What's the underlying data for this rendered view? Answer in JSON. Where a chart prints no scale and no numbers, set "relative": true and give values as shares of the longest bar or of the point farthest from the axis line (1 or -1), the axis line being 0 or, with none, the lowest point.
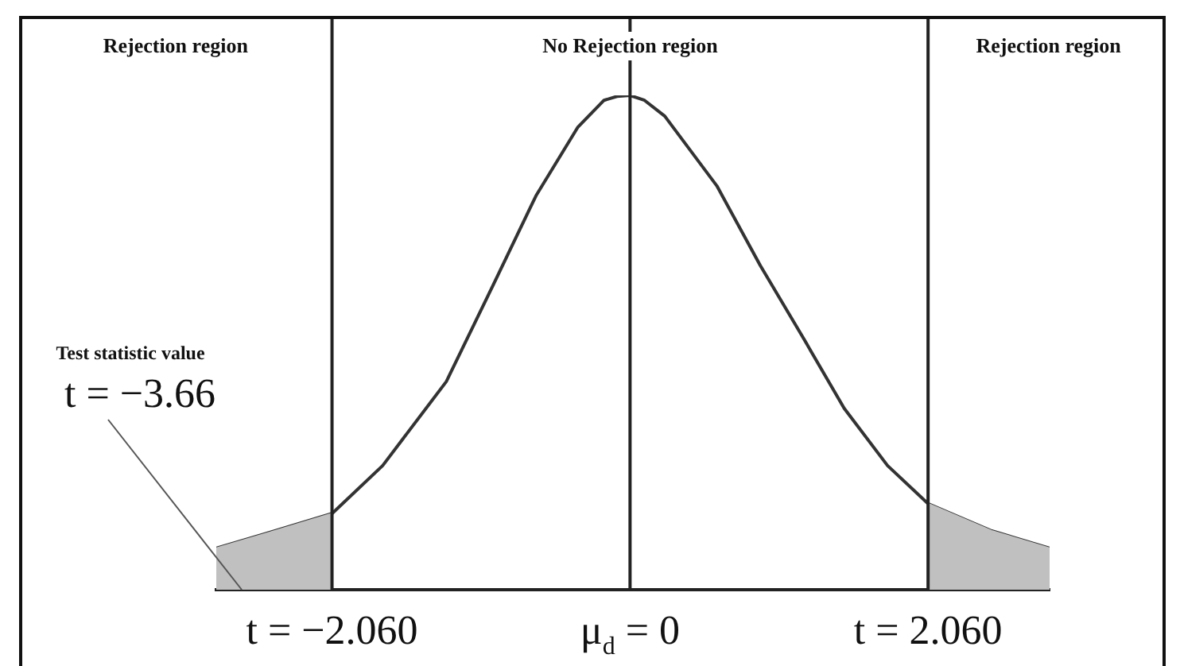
{
  "chart_data": {
    "type": "line",
    "relative": true,
    "xlim": [
      -2.86,
      2.9
    ],
    "tick_labels": "x",
    "grid": "x",
    "legend": false,
    "marker": "none",
    "line_style": "solid",
    "xticks": [
      {
        "value": -2.06,
        "label": "t = −2.060"
      },
      {
        "value": 0,
        "label": "μ$_{d}$ = 0"
      },
      {
        "value": 2.06,
        "label": "t = 2.060"
      }
    ],
    "series": [
      {
        "type": "area",
        "color": "#c0c0c0",
        "x": [
          -2.86,
          -2.5,
          -2.06
        ],
        "values": [
          0.084,
          0.115,
          0.154
        ]
      },
      {
        "type": "area",
        "color": "#c0c0c0",
        "x": [
          2.06,
          2.5,
          2.9
        ],
        "values": [
          0.174,
          0.119,
          0.084
        ]
      },
      {
        "type": "line",
        "color": "#333333",
        "x": [
          -2.86,
          -2.5,
          -2.06,
          -1.71,
          -1.27,
          -0.95,
          -0.65,
          -0.36,
          -0.18,
          -0.09,
          0,
          0.1,
          0.24,
          0.6,
          0.9,
          1.2,
          1.48,
          1.78,
          2.06,
          2.5,
          2.9
        ],
        "values": [
          0.084,
          0.115,
          0.154,
          0.251,
          0.421,
          0.614,
          0.797,
          0.936,
          0.99,
          0.998,
          1,
          0.99,
          0.958,
          0.817,
          0.656,
          0.508,
          0.367,
          0.251,
          0.174,
          0.119,
          0.084
        ]
      }
    ],
    "annotations": [
      "Rejection region",
      "No Rejection region",
      "Rejection region",
      "Test statistic value",
      "t = −3.66"
    ]
  }
}
